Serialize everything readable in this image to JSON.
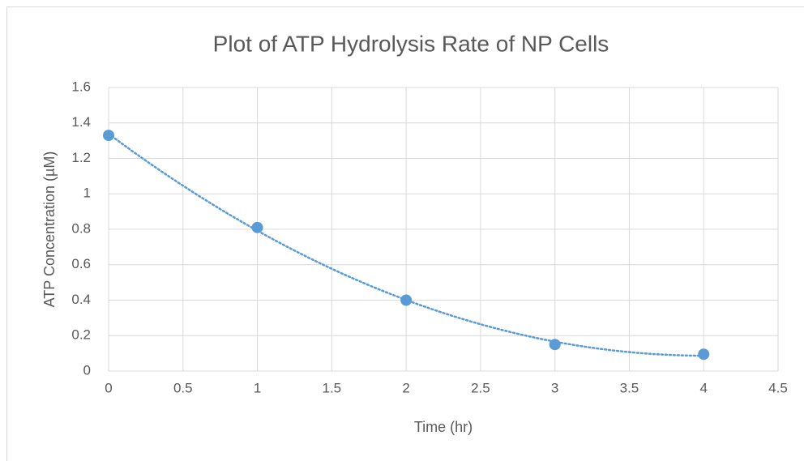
{
  "chart_data": {
    "type": "scatter",
    "title": "Plot of ATP Hydrolysis Rate of NP Cells",
    "x_label": "Time (hr)",
    "y_label": "ATP Concentration (µM)",
    "series": [
      {
        "color": "#5b9bd5",
        "x": [
          0,
          1,
          2,
          3,
          4
        ],
        "values": [
          1.33,
          0.81,
          0.4,
          0.15,
          0.095
        ]
      }
    ],
    "trendline": {
      "type": "polynomial",
      "order": 2,
      "style": "dotted"
    },
    "xlim": [
      0,
      4.5
    ],
    "xticks": [
      0,
      0.5,
      1,
      1.5,
      2,
      2.5,
      3,
      3.5,
      4,
      4.5
    ],
    "ylim": [
      0,
      1.6
    ],
    "yticks": [
      0,
      0.2,
      0.4,
      0.6,
      0.8,
      1,
      1.2,
      1.4,
      1.6
    ],
    "grid": true
  }
}
